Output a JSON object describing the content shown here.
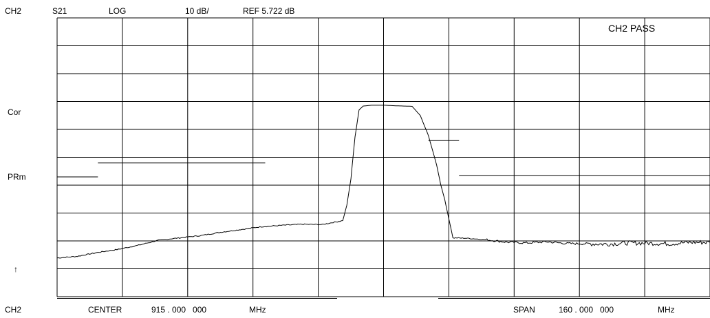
{
  "header": {
    "channel": "CH2",
    "parameter": "S21",
    "format": "LOG",
    "scale": "10 dB/",
    "reference": "REF 5.722 dB"
  },
  "status": {
    "pass_text": "CH2 PASS"
  },
  "side_labels": {
    "correction": "Cor",
    "preset_marker": "PRm",
    "reference_arrow": "↑"
  },
  "footer": {
    "channel": "CH2",
    "center_label": "CENTER",
    "center_value": "915 . 000   000",
    "center_unit": "MHz",
    "span_label": "SPAN",
    "span_value": "160 . 000   000",
    "span_unit": "MHz"
  },
  "chart_data": {
    "type": "line",
    "title": "",
    "xlabel": "",
    "ylabel": "",
    "x_unit": "MHz",
    "y_unit": "dB",
    "center_mhz": 915,
    "span_mhz": 160,
    "xlim": [
      835,
      995
    ],
    "ylim": [
      -84.278,
      15.722
    ],
    "reference_level_db": 5.722,
    "scale_db_per_div": 10,
    "grid": true,
    "divisions": {
      "x": 10,
      "y": 10
    },
    "series": [
      {
        "x": [
          835,
          840,
          845,
          850,
          855,
          860,
          865,
          870,
          875,
          880,
          885,
          890,
          895,
          900,
          905,
          906,
          907,
          908,
          909,
          910,
          912,
          915,
          918,
          920,
          922,
          924,
          926,
          928,
          929,
          930,
          932,
          935,
          940,
          945,
          950,
          955,
          960,
          965,
          970,
          975,
          980,
          985,
          990,
          995
        ],
        "y": [
          -70.4,
          -69.8,
          -68.4,
          -67.3,
          -65.8,
          -64.0,
          -63.2,
          -62.4,
          -61.2,
          -60.2,
          -59.2,
          -58.7,
          -58.3,
          -58.4,
          -57.0,
          -51.5,
          -42.0,
          -27.0,
          -17.3,
          -15.9,
          -15.6,
          -15.6,
          -15.8,
          -15.9,
          -16.0,
          -19.3,
          -26.5,
          -37.0,
          -44.0,
          -49.5,
          -63.2,
          -63.3,
          -63.8,
          -64.7,
          -65.0,
          -64.6,
          -65.2,
          -65.3,
          -65.4,
          -65.0,
          -65.1,
          -65.3,
          -64.8,
          -64.8
        ]
      }
    ],
    "limit_lines": [
      {
        "x": [
          835,
          845.0
        ],
        "y": [
          -41.3,
          -41.3
        ]
      },
      {
        "x": [
          845.0,
          886.0
        ],
        "y": [
          -36.3,
          -36.3
        ]
      },
      {
        "x": [
          926.0,
          933.5
        ],
        "y": [
          -28.3,
          -28.3
        ]
      },
      {
        "x": [
          933.5,
          995
        ],
        "y": [
          -40.8,
          -40.8
        ]
      }
    ]
  }
}
